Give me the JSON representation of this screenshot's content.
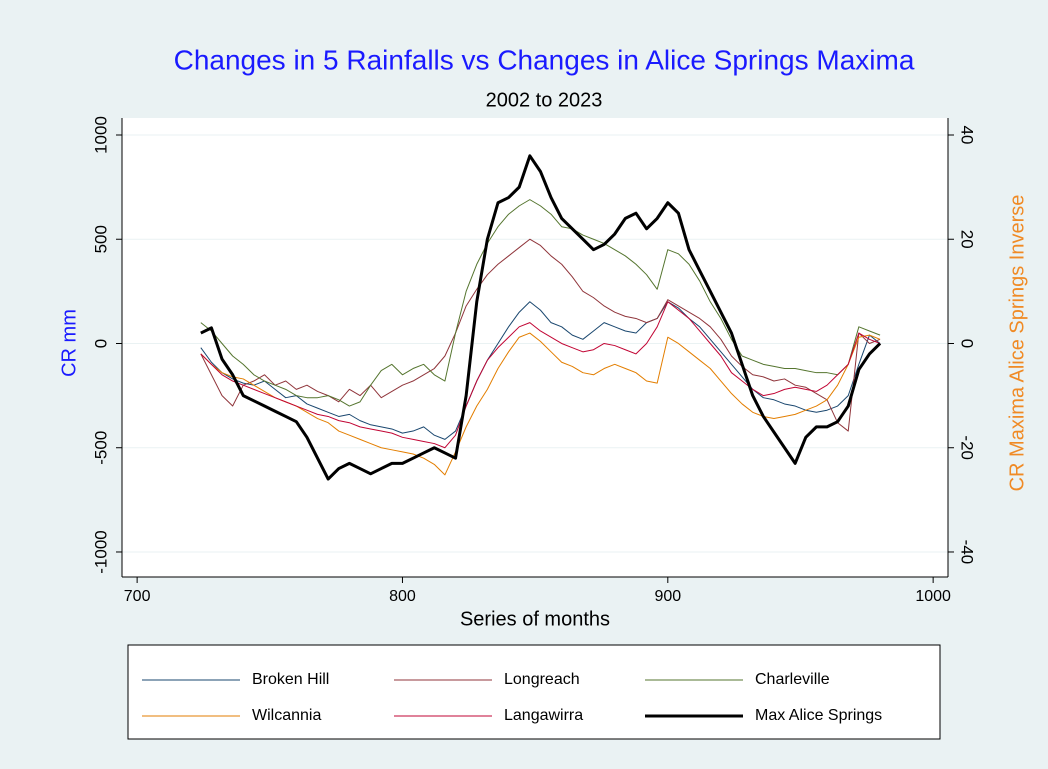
{
  "chart_data": {
    "type": "line",
    "title": "Changes in 5 Rainfalls vs Changes in Alice Springs Maxima",
    "subtitle": "2002 to 2023",
    "x_label": "Series of months",
    "y_label": "CR mm",
    "y2_label": "CR Maxima Alice Springs Inverse",
    "xlim": [
      694.3,
      1005.6
    ],
    "xticks": [
      700,
      800,
      900,
      1000
    ],
    "ylim": [
      -1120,
      1081.5
    ],
    "yticks": [
      -1000,
      -500,
      0,
      500,
      1000
    ],
    "y2lim": [
      -44.8,
      43.26
    ],
    "y2ticks": [
      -40,
      -20,
      0,
      20,
      40
    ],
    "grid": true,
    "legend_position": "bottom",
    "x": [
      724,
      728,
      732,
      736,
      740,
      744,
      748,
      752,
      756,
      760,
      764,
      768,
      772,
      776,
      780,
      784,
      788,
      792,
      796,
      800,
      804,
      808,
      812,
      816,
      820,
      824,
      828,
      832,
      836,
      840,
      844,
      848,
      852,
      856,
      860,
      864,
      868,
      872,
      876,
      880,
      884,
      888,
      892,
      896,
      900,
      904,
      908,
      912,
      916,
      920,
      924,
      928,
      932,
      936,
      940,
      944,
      948,
      952,
      956,
      960,
      964,
      968,
      972,
      976,
      980
    ],
    "series": [
      {
        "name": "Broken Hill",
        "color": "#1a476f",
        "width": 1,
        "values": [
          -20,
          -90,
          -140,
          -170,
          -190,
          -200,
          -180,
          -220,
          -260,
          -250,
          -290,
          -310,
          -330,
          -350,
          -340,
          -370,
          -390,
          -400,
          -410,
          -430,
          -420,
          -400,
          -440,
          -460,
          -420,
          -300,
          -180,
          -80,
          0,
          80,
          150,
          200,
          160,
          100,
          80,
          40,
          20,
          60,
          100,
          80,
          60,
          50,
          100,
          120,
          200,
          170,
          120,
          80,
          20,
          -40,
          -100,
          -160,
          -220,
          -260,
          -270,
          -290,
          -300,
          -320,
          -330,
          -320,
          -300,
          -250,
          -100,
          40,
          0
        ]
      },
      {
        "name": "Longreach",
        "color": "#90353b",
        "width": 1,
        "values": [
          -50,
          -150,
          -250,
          -300,
          -200,
          -180,
          -150,
          -200,
          -180,
          -220,
          -200,
          -230,
          -250,
          -280,
          -220,
          -250,
          -200,
          -260,
          -230,
          -200,
          -180,
          -150,
          -120,
          -60,
          50,
          180,
          260,
          330,
          380,
          420,
          460,
          500,
          470,
          420,
          380,
          320,
          250,
          220,
          180,
          150,
          130,
          120,
          100,
          120,
          210,
          180,
          150,
          120,
          80,
          20,
          -60,
          -110,
          -150,
          -160,
          -180,
          -170,
          -200,
          -210,
          -240,
          -270,
          -380,
          -420,
          50,
          0,
          20
        ]
      },
      {
        "name": "Charleville",
        "color": "#55752f",
        "width": 1,
        "values": [
          100,
          60,
          0,
          -60,
          -100,
          -150,
          -180,
          -200,
          -220,
          -250,
          -260,
          -260,
          -250,
          -270,
          -300,
          -280,
          -200,
          -130,
          -100,
          -150,
          -120,
          -100,
          -150,
          -180,
          50,
          250,
          380,
          480,
          560,
          620,
          660,
          690,
          660,
          620,
          560,
          550,
          520,
          500,
          480,
          450,
          420,
          380,
          330,
          260,
          450,
          430,
          380,
          300,
          200,
          120,
          20,
          -60,
          -80,
          -100,
          -110,
          -120,
          -120,
          -130,
          -140,
          -140,
          -150,
          -100,
          80,
          60,
          40
        ]
      },
      {
        "name": "Wilcannia",
        "color": "#e37e00",
        "width": 1,
        "values": [
          -50,
          -100,
          -140,
          -160,
          -170,
          -200,
          -230,
          -260,
          -280,
          -300,
          -330,
          -360,
          -380,
          -420,
          -440,
          -460,
          -480,
          -500,
          -510,
          -520,
          -530,
          -550,
          -580,
          -630,
          -520,
          -400,
          -300,
          -220,
          -120,
          -40,
          30,
          50,
          10,
          -40,
          -90,
          -110,
          -140,
          -150,
          -120,
          -100,
          -120,
          -140,
          -180,
          -190,
          30,
          0,
          -40,
          -80,
          -120,
          -180,
          -240,
          -290,
          -330,
          -350,
          -360,
          -350,
          -340,
          -320,
          -300,
          -270,
          -200,
          -100,
          30,
          40,
          20
        ]
      },
      {
        "name": "Langawirra",
        "color": "#c10534",
        "width": 1,
        "values": [
          -50,
          -100,
          -150,
          -180,
          -200,
          -220,
          -240,
          -260,
          -280,
          -300,
          -320,
          -340,
          -350,
          -370,
          -380,
          -400,
          -410,
          -420,
          -430,
          -450,
          -460,
          -470,
          -480,
          -500,
          -440,
          -300,
          -180,
          -80,
          -20,
          30,
          80,
          100,
          60,
          30,
          0,
          -20,
          -40,
          -30,
          0,
          -10,
          -30,
          -50,
          0,
          80,
          200,
          160,
          120,
          60,
          0,
          -60,
          -140,
          -180,
          -220,
          -250,
          -240,
          -220,
          -210,
          -220,
          -230,
          -200,
          -150,
          -100,
          50,
          20,
          0
        ]
      },
      {
        "name": "Max Alice Springs",
        "color": "#000000",
        "width": 3,
        "axis": "y2",
        "values": [
          2,
          3,
          -3,
          -6,
          -10,
          -11,
          -12,
          -13,
          -14,
          -15,
          -18,
          -22,
          -26,
          -24,
          -23,
          -24,
          -25,
          -24,
          -23,
          -23,
          -22,
          -21,
          -20,
          -21,
          -22,
          -10,
          8,
          20,
          27,
          28,
          30,
          36,
          33,
          28,
          24,
          22,
          20,
          18,
          19,
          21,
          24,
          25,
          22,
          24,
          27,
          25,
          18,
          14,
          10,
          6,
          2,
          -4,
          -10,
          -14,
          -17,
          -20,
          -23,
          -18,
          -16,
          -16,
          -15,
          -12,
          -5,
          -2,
          0
        ]
      }
    ]
  }
}
